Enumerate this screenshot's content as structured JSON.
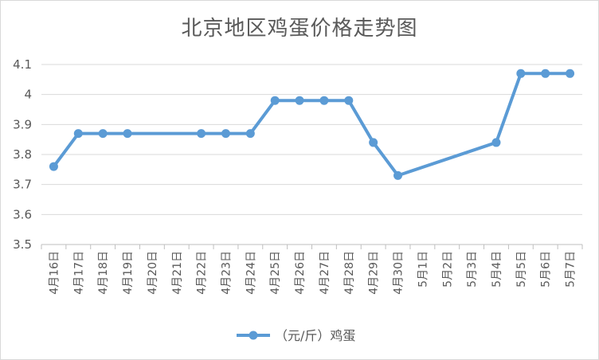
{
  "chart_data": {
    "type": "line",
    "title": "北京地区鸡蛋价格走势图",
    "categories": [
      "4月16日",
      "4月17日",
      "4月18日",
      "4月19日",
      "4月20日",
      "4月21日",
      "4月22日",
      "4月23日",
      "4月24日",
      "4月25日",
      "4月26日",
      "4月27日",
      "4月28日",
      "4月29日",
      "4月30日",
      "5月1日",
      "5月2日",
      "5月3日",
      "5月4日",
      "5月5日",
      "5月6日",
      "5月7日"
    ],
    "series": [
      {
        "name": "（元/斤）鸡蛋",
        "color": "#5b9bd5",
        "values": [
          3.76,
          3.87,
          3.87,
          3.87,
          null,
          null,
          3.87,
          3.87,
          3.87,
          3.98,
          3.98,
          3.98,
          3.98,
          3.84,
          3.73,
          null,
          null,
          null,
          3.84,
          4.07,
          4.07,
          4.07
        ]
      }
    ],
    "yticks": [
      "3.5",
      "3.6",
      "3.7",
      "3.8",
      "3.9",
      "4",
      "4.1"
    ],
    "ylim": [
      3.5,
      4.1
    ],
    "grid": true,
    "legend": "bottom"
  }
}
